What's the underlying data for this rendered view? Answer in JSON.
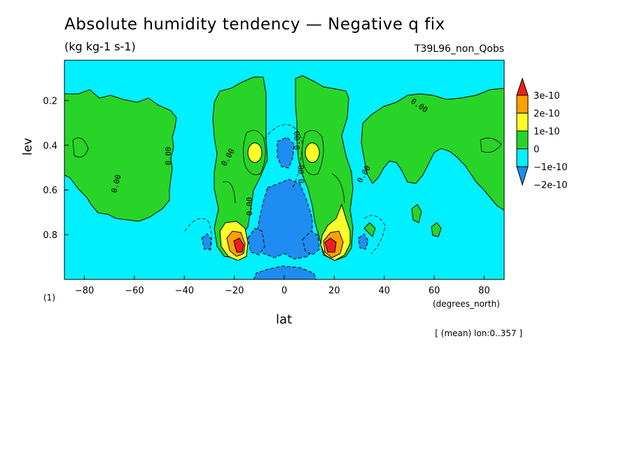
{
  "title": "Absolute humidity tendency — Negative q fix",
  "units": "(kg kg-1 s-1)",
  "experiment": "T39L96_non_Qobs",
  "panel_label": "(1)",
  "x_units": "(degrees_north)",
  "averaging_note": "[ (mean) lon:0..357 ]",
  "chart_data": {
    "type": "heatmap",
    "xlabel": "lat",
    "ylabel": "lev",
    "xlim": [
      -88,
      88
    ],
    "ylim": [
      1.0,
      0.02
    ],
    "x_ticks": [
      -80,
      -60,
      -40,
      -20,
      0,
      20,
      40,
      60,
      80
    ],
    "x_tick_labels": [
      "−80",
      "−60",
      "−40",
      "−20",
      "0",
      "20",
      "40",
      "60",
      "80"
    ],
    "y_ticks": [
      0.2,
      0.4,
      0.6,
      0.8
    ],
    "y_tick_labels": [
      "0.2",
      "0.4",
      "0.6",
      "0.8"
    ],
    "colorbar": {
      "levels": [
        -2e-10,
        -1e-10,
        0,
        1e-10,
        2e-10,
        3e-10
      ],
      "labels": [
        "−2e-10",
        "−1e-10",
        "0",
        "1e-10",
        "2e-10",
        "3e-10"
      ],
      "colors": [
        "#1e8cf0",
        "#00f0ff",
        "#28d428",
        "#ffff28",
        "#ffa000",
        "#f01e1e"
      ],
      "extend": "both"
    },
    "contour_labels": [
      "0.00",
      "0.00",
      "0.00",
      "0.00",
      "0.00",
      "0.00",
      "0.00",
      "0.00"
    ],
    "features": [
      {
        "lat": -18,
        "lev": 0.84,
        "value": 3e-10
      },
      {
        "lat": 18,
        "lev": 0.84,
        "value": 3e-10
      },
      {
        "lat": -12,
        "lev": 0.44,
        "value": 1e-10
      },
      {
        "lat": 12,
        "lev": 0.44,
        "value": 1e-10
      },
      {
        "lat": -1,
        "lev": 0.42,
        "value": -2e-10
      },
      {
        "lat": 0,
        "lev": 0.86,
        "value": -2e-10
      }
    ]
  }
}
